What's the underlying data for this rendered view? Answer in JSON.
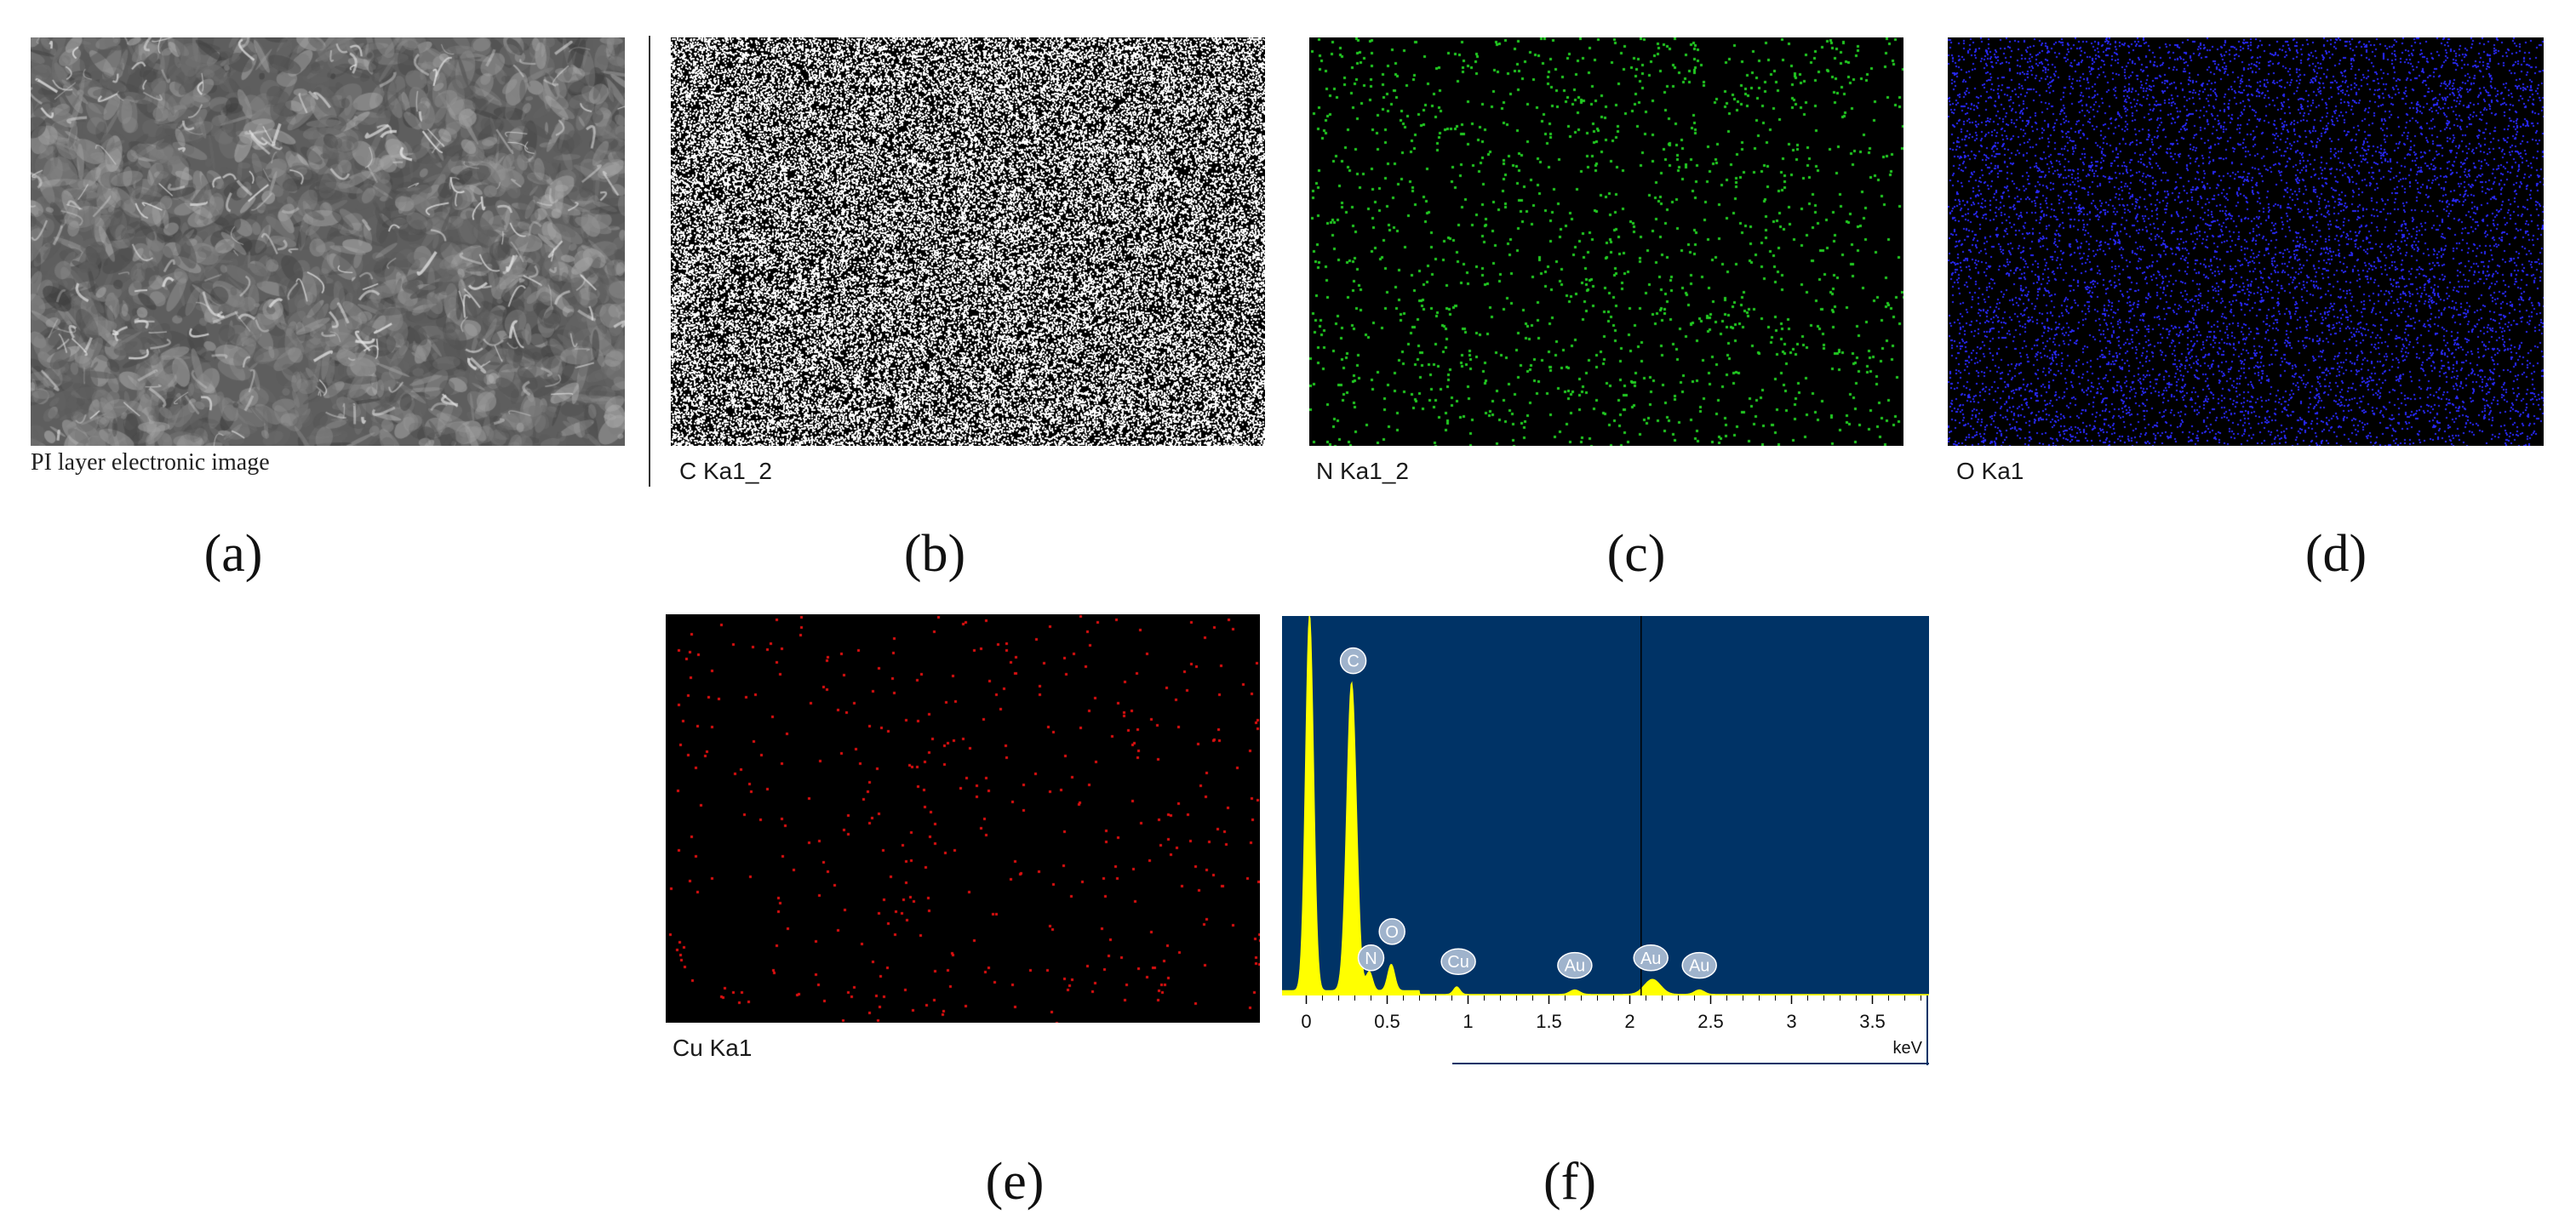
{
  "panels": {
    "a": {
      "letter": "(a)",
      "caption": "PI layer electronic image"
    },
    "b": {
      "letter": "(b)",
      "caption": "C Ka1_2",
      "dot_color": "#ffffff"
    },
    "c": {
      "letter": "(c)",
      "caption": "N Ka1_2",
      "dot_color": "#22cc22"
    },
    "d": {
      "letter": "(d)",
      "caption": "O Ka1",
      "dot_color": "#2a2aff"
    },
    "e": {
      "letter": "(e)",
      "caption": "Cu Ka1",
      "dot_color": "#e01010"
    },
    "f": {
      "letter": "(f)"
    }
  },
  "chart_data": {
    "type": "area",
    "title": "",
    "xlabel": "keV",
    "ylabel": "",
    "xlim": [
      -0.15,
      3.85
    ],
    "xticks": [
      "0",
      "0.5",
      "1",
      "1.5",
      "2",
      "2.5",
      "3",
      "3.5"
    ],
    "xtick_values": [
      0,
      0.5,
      1,
      1.5,
      2,
      2.5,
      3,
      3.5
    ],
    "background": "#003366",
    "fill_color": "#ffff00",
    "cursor_x": 2.07,
    "peaks": [
      {
        "x": 0.02,
        "height": 1.0,
        "width": 0.025
      },
      {
        "x": 0.28,
        "height": 0.82,
        "width": 0.03
      },
      {
        "x": 0.39,
        "height": 0.05,
        "width": 0.02
      },
      {
        "x": 0.525,
        "height": 0.07,
        "width": 0.022
      },
      {
        "x": 0.93,
        "height": 0.02,
        "width": 0.02
      },
      {
        "x": 1.66,
        "height": 0.012,
        "width": 0.03
      },
      {
        "x": 2.14,
        "height": 0.04,
        "width": 0.05
      },
      {
        "x": 2.43,
        "height": 0.012,
        "width": 0.03
      }
    ],
    "labels": [
      {
        "text": "C",
        "x": 0.29,
        "y": 0.89
      },
      {
        "text": "N",
        "x": 0.4,
        "y": 0.1
      },
      {
        "text": "O",
        "x": 0.53,
        "y": 0.17
      },
      {
        "text": "Cu",
        "x": 0.94,
        "y": 0.09
      },
      {
        "text": "Au",
        "x": 1.66,
        "y": 0.08
      },
      {
        "text": "Au",
        "x": 2.13,
        "y": 0.1
      },
      {
        "text": "Au",
        "x": 2.43,
        "y": 0.08
      }
    ]
  }
}
